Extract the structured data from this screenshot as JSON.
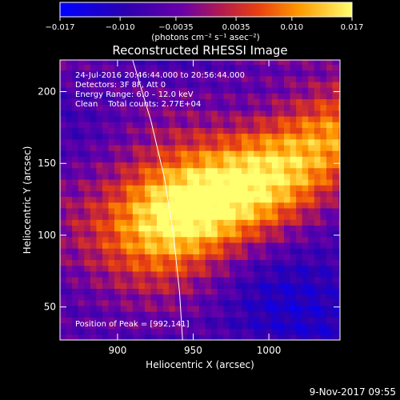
{
  "chart_data": {
    "type": "heatmap",
    "title": "Reconstructed RHESSI Image",
    "xlabel": "Heliocentric X (arcsec)",
    "ylabel": "Heliocentric Y (arcsec)",
    "xlim": [
      862,
      1047
    ],
    "ylim": [
      27,
      222
    ],
    "x_ticks": [
      900,
      950,
      1000
    ],
    "y_ticks": [
      50,
      100,
      150,
      200
    ],
    "colorbar": {
      "min": -0.017,
      "max": 0.017,
      "tick_labels": [
        "−0.017",
        "−0.010",
        "−0.0035",
        "0.0035",
        "0.010",
        "0.017"
      ],
      "tick_values": [
        -0.017,
        -0.01,
        -0.0035,
        0.0035,
        0.01,
        0.017
      ],
      "units": "(photons cm⁻² s⁻¹ asec⁻²)"
    },
    "annotations": {
      "time": "24-Jul-2016 20:46:44.000 to 20:56:44.000",
      "detectors": "Detectors: 3F 8F, Att 0",
      "energy": "Energy Range: 6.0 – 12.0 keV",
      "clean": "Clean    Total counts: 2.77E+04",
      "peak": "Position of Peak = [992,141]"
    },
    "peak": [
      992,
      141
    ],
    "limb_curve": [
      [
        910,
        222
      ],
      [
        922,
        180
      ],
      [
        931,
        140
      ],
      [
        937,
        100
      ],
      [
        941,
        60
      ],
      [
        943,
        27
      ]
    ]
  },
  "footer": {
    "date": "9-Nov-2017 09:55"
  }
}
